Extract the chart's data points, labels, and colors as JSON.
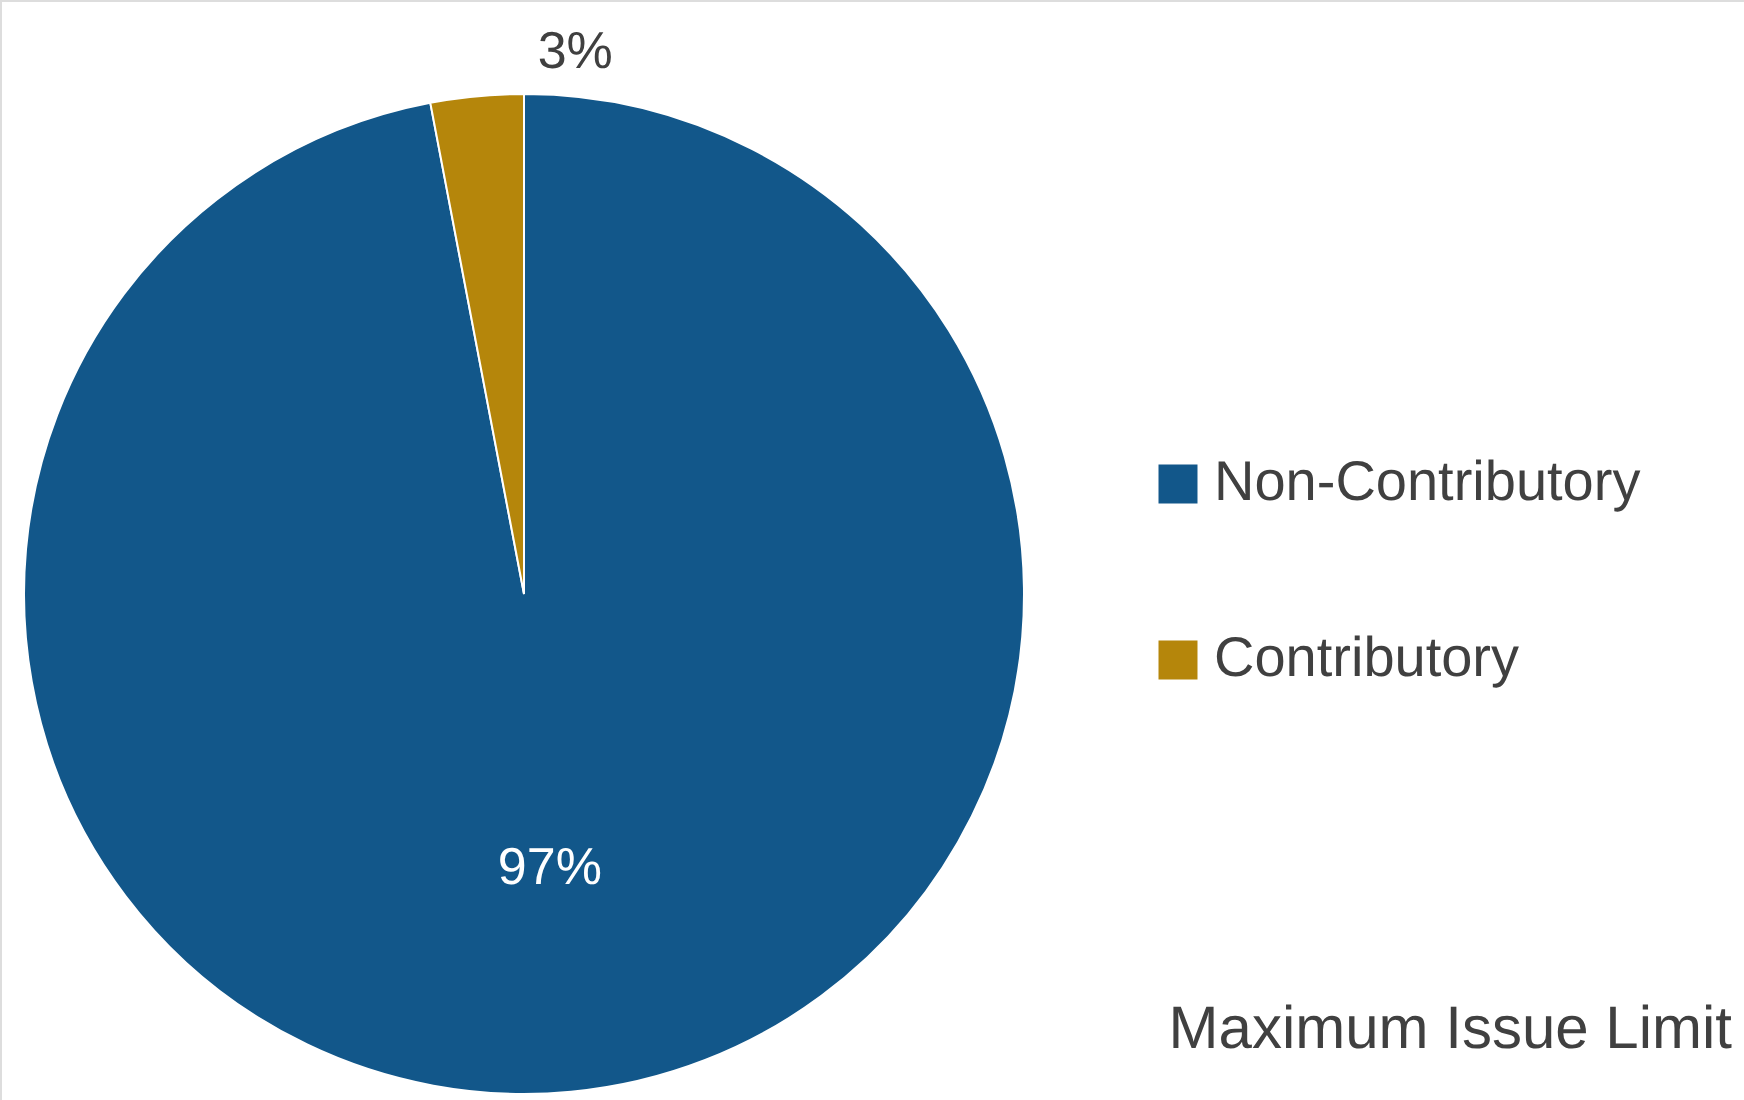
{
  "chart_data": {
    "type": "pie",
    "title": "Maximum Issue Limit",
    "categories": [
      "Non-Contributory",
      "Contributory"
    ],
    "values": [
      97,
      3
    ],
    "colors": [
      "#12578a",
      "#b5860b"
    ],
    "value_labels": [
      "97%",
      "3%"
    ],
    "legend": "right"
  }
}
